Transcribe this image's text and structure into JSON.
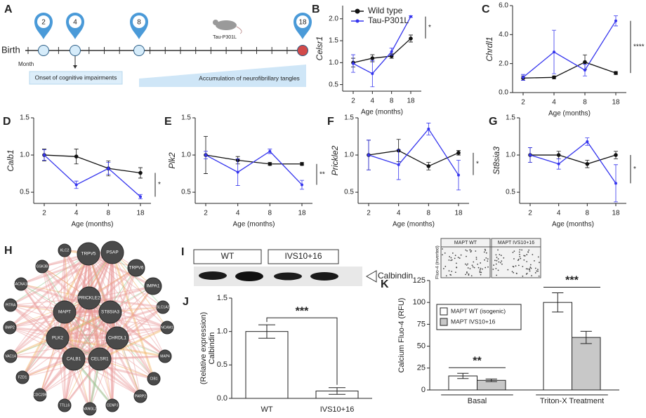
{
  "timeline": {
    "panel": "A",
    "birth": "Birth",
    "month_label": "Month",
    "pins": [
      "2",
      "4",
      "8",
      "18"
    ],
    "mouse_label": "Tau-P301L",
    "phases": [
      "Onset of cognitive impairments",
      "Accumulation of neurofibrillary tangles"
    ]
  },
  "network": {
    "panel": "H",
    "nodes": [
      "KLC2",
      "TRPV5",
      "PSAP",
      "GSK3B",
      "TRPV6",
      "CACNA1B",
      "IMPA1",
      "PRICKLE2",
      "MAPT",
      "ST8SIA3",
      "SLC1A2",
      "PITRA",
      "BMP2",
      "NCAM1",
      "PLK2",
      "CHRDL1",
      "MAP4",
      "VAC14",
      "CALB1",
      "CELSR1",
      "CIB1",
      "FZD1",
      "PARP2",
      "CDC20B",
      "TTLL6",
      "VANGL2",
      "CENPJ"
    ]
  },
  "blot": {
    "panel": "I",
    "lanes": [
      "WT",
      "IVS10+16"
    ],
    "band_label": "Calbindin"
  },
  "chart_data": [
    {
      "panel": "B",
      "type": "line",
      "ylabel": "Celsr1",
      "xlabel": "Age (months)",
      "categories": [
        "2",
        "4",
        "8",
        "18"
      ],
      "ylim": [
        0.35,
        2.3
      ],
      "yticks": [
        0.5,
        {
          "value": 1,
          "label": "1.0"
        },
        1.5,
        {
          "value": 2,
          "label": "2.0"
        }
      ],
      "legend": "upper left",
      "annotation": "*",
      "series": [
        {
          "name": "Wild type",
          "color": "#111111",
          "values": [
            1.0,
            1.1,
            1.15,
            1.55
          ],
          "errors": [
            0.1,
            0.08,
            0.05,
            0.08
          ]
        },
        {
          "name": "Tau-P301L",
          "color": "#3535ee",
          "values": [
            0.98,
            0.75,
            1.25,
            2.05
          ],
          "errors": [
            0.2,
            0.3,
            0.08,
            0.02
          ]
        }
      ]
    },
    {
      "panel": "C",
      "type": "line",
      "ylabel": "Chrdl1",
      "xlabel": "Age (months)",
      "categories": [
        "2",
        "4",
        "8",
        "18"
      ],
      "ylim": [
        0,
        6
      ],
      "yticks": [
        {
          "value": 0,
          "label": "0.0"
        },
        {
          "value": 2,
          "label": "2.0"
        },
        {
          "value": 4,
          "label": "4.0"
        },
        {
          "value": 6,
          "label": "6.0"
        }
      ],
      "annotation": "****",
      "series": [
        {
          "color": "#111111",
          "values": [
            1.0,
            1.05,
            2.1,
            1.35
          ],
          "errors": [
            0.15,
            0.1,
            0.5,
            0.1
          ]
        },
        {
          "color": "#3535ee",
          "values": [
            1.05,
            2.8,
            1.55,
            4.95
          ],
          "errors": [
            0.2,
            1.5,
            0.4,
            0.35
          ]
        }
      ]
    },
    {
      "panel": "D",
      "type": "line",
      "ylabel": "Calb1",
      "xlabel": "Age (months)",
      "categories": [
        "2",
        "4",
        "8",
        "18"
      ],
      "ylim": [
        0.35,
        1.5
      ],
      "yticks": [
        0.5,
        {
          "value": 1,
          "label": "1.0"
        },
        1.5
      ],
      "annotation": "*",
      "series": [
        {
          "color": "#111111",
          "values": [
            1.0,
            0.98,
            0.82,
            0.76
          ],
          "errors": [
            0.08,
            0.1,
            0.1,
            0.07
          ]
        },
        {
          "color": "#3535ee",
          "values": [
            1.0,
            0.6,
            0.82,
            0.44
          ],
          "errors": [
            0.07,
            0.05,
            0.08,
            0.03
          ]
        }
      ]
    },
    {
      "panel": "E",
      "type": "line",
      "ylabel": "Plk2",
      "xlabel": "Age (months)",
      "categories": [
        "2",
        "4",
        "8",
        "18"
      ],
      "ylim": [
        0.35,
        1.5
      ],
      "yticks": [
        0.5,
        {
          "value": 1,
          "label": "1.0"
        },
        1.5
      ],
      "annotation": "**",
      "series": [
        {
          "color": "#111111",
          "values": [
            1.0,
            0.93,
            0.88,
            0.88
          ],
          "errors": [
            0.25,
            0.05,
            0.02,
            0.02
          ]
        },
        {
          "color": "#3535ee",
          "values": [
            1.0,
            0.77,
            1.05,
            0.6
          ],
          "errors": [
            0.05,
            0.18,
            0.03,
            0.06
          ]
        }
      ]
    },
    {
      "panel": "F",
      "type": "line",
      "ylabel": "Prickle2",
      "xlabel": "Age (months)",
      "categories": [
        "2",
        "4",
        "8",
        "18"
      ],
      "ylim": [
        0.35,
        1.5
      ],
      "yticks": [
        0.5,
        {
          "value": 1,
          "label": "1.0"
        },
        1.5
      ],
      "annotation": "*",
      "series": [
        {
          "color": "#111111",
          "values": [
            1.0,
            1.06,
            0.85,
            1.03
          ],
          "errors": [
            0.2,
            0.15,
            0.05,
            0.03
          ]
        },
        {
          "color": "#3535ee",
          "values": [
            1.0,
            0.87,
            1.35,
            0.73
          ],
          "errors": [
            0.2,
            0.2,
            0.08,
            0.2
          ]
        }
      ]
    },
    {
      "panel": "G",
      "type": "line",
      "ylabel": "St8sia3",
      "xlabel": "Age (months)",
      "categories": [
        "2",
        "4",
        "8",
        "18"
      ],
      "ylim": [
        0.35,
        1.5
      ],
      "yticks": [
        0.5,
        {
          "value": 1,
          "label": "1.0"
        },
        1.5
      ],
      "annotation": "*",
      "series": [
        {
          "color": "#111111",
          "values": [
            1.0,
            1.0,
            0.88,
            1.0
          ],
          "errors": [
            0.1,
            0.05,
            0.05,
            0.05
          ]
        },
        {
          "color": "#3535ee",
          "values": [
            1.0,
            0.88,
            1.18,
            0.62
          ],
          "errors": [
            0.1,
            0.07,
            0.05,
            0.25
          ]
        }
      ]
    },
    {
      "panel": "J",
      "type": "bar",
      "ylabel": [
        "Calbindin",
        "(Relative expression)"
      ],
      "categories": [
        "WT",
        "IVS10+16"
      ],
      "values": [
        1.0,
        0.11
      ],
      "errors": [
        0.1,
        0.05
      ],
      "color": "#ffffff",
      "ylim": [
        0,
        1.5
      ],
      "yticks": [
        {
          "value": 0,
          "label": "0.0"
        },
        {
          "value": 0.5,
          "label": "0.5"
        },
        {
          "value": 1,
          "label": "1.0"
        },
        {
          "value": 1.5,
          "label": "1.5"
        }
      ],
      "annotation": "***"
    },
    {
      "panel": "K",
      "type": "bar",
      "ylabel": "Calcium Fluo-4 (RFU)",
      "categories": [
        "Basal",
        "Triton-X Treatment"
      ],
      "ylim": [
        0,
        125
      ],
      "yticks": [
        0,
        25,
        50,
        75,
        100,
        125
      ],
      "legend": "upper left",
      "annotations": [
        "**",
        "***"
      ],
      "inset_labels": [
        "MAPT WT",
        "MAPT IVS10+16"
      ],
      "inset_stain": "Fluo-4 (inverted)",
      "series": [
        {
          "name": "MAPT WT (isogenic)",
          "color": "#ffffff",
          "values": [
            16,
            100
          ],
          "errors": [
            3,
            11
          ]
        },
        {
          "name": "MAPT IVS10+16",
          "color": "#c8c8c8",
          "values": [
            11,
            60
          ],
          "errors": [
            1.5,
            7
          ]
        }
      ]
    }
  ]
}
